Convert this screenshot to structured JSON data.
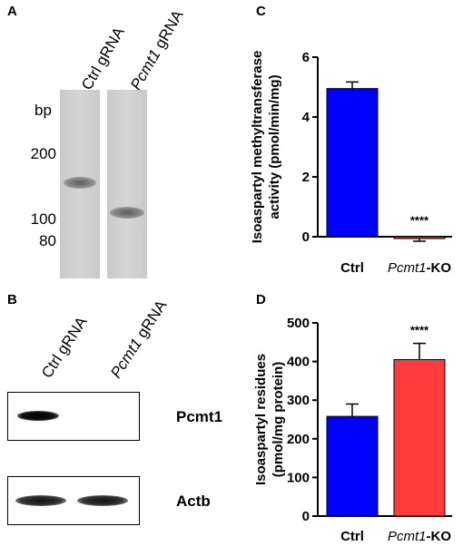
{
  "panel_a": {
    "letter": "A",
    "lane_labels": [
      {
        "prefix": "",
        "italic": "",
        "text": "Ctrl gRNA"
      },
      {
        "prefix": "",
        "italic": "Pcmt1",
        "text": " gRNA"
      }
    ],
    "mw_unit": "bp",
    "mw_markers": [
      "200",
      "100",
      "80"
    ]
  },
  "panel_b": {
    "letter": "B",
    "lane_labels": [
      {
        "italic": "",
        "text": "Ctrl gRNA"
      },
      {
        "italic": "Pcmt1",
        "text": " gRNA"
      }
    ],
    "blots": [
      {
        "name": "Pcmt1",
        "bands": [
          1,
          0
        ]
      },
      {
        "name": "Actb",
        "bands": [
          1,
          1
        ]
      }
    ]
  },
  "chart_data": [
    {
      "panel": "C",
      "type": "bar",
      "categories": [
        {
          "italic": "",
          "text": "Ctrl"
        },
        {
          "italic": "Pcmt1",
          "text": "-KO"
        }
      ],
      "values": [
        4.95,
        -0.05
      ],
      "errors": [
        0.22,
        0.1
      ],
      "colors": [
        "#0000ff",
        "#ff3b3b"
      ],
      "ylabel_line1": "Isoaspartyl methyltransferase",
      "ylabel_line2": "activity (pmol/min/mg)",
      "ylim": [
        0,
        6
      ],
      "yticks": [
        "0",
        "2",
        "4",
        "6"
      ],
      "significance": [
        "",
        "****"
      ]
    },
    {
      "panel": "D",
      "type": "bar",
      "categories": [
        {
          "italic": "",
          "text": "Ctrl"
        },
        {
          "italic": "Pcmt1",
          "text": "-KO"
        }
      ],
      "values": [
        258,
        405
      ],
      "errors": [
        32,
        42
      ],
      "colors": [
        "#0000ff",
        "#ff3b3b"
      ],
      "ylabel_line1": "Isoaspartyl residues",
      "ylabel_line2": "(pmol/mg protein)",
      "ylim": [
        0,
        500
      ],
      "yticks": [
        "0",
        "100",
        "200",
        "300",
        "400",
        "500"
      ],
      "significance": [
        "",
        "****"
      ]
    }
  ]
}
